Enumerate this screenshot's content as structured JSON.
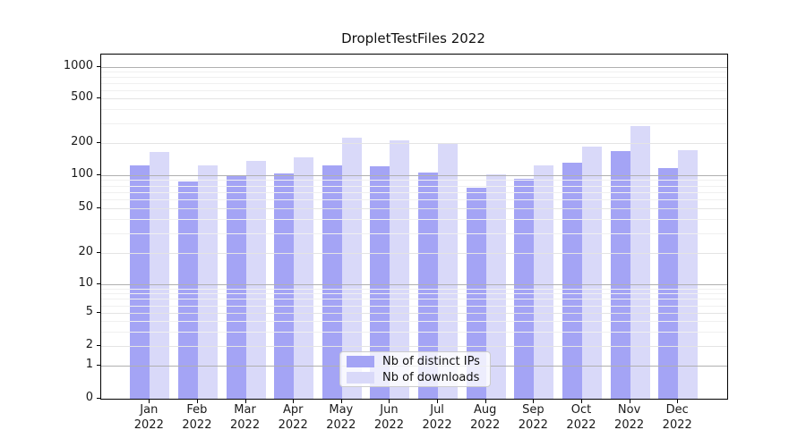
{
  "title": "DropletTestFiles 2022",
  "chart_data": {
    "type": "bar",
    "title": "DropletTestFiles 2022",
    "categories": [
      "Jan 2022",
      "Feb 2022",
      "Mar 2022",
      "Apr 2022",
      "May 2022",
      "Jun 2022",
      "Jul 2022",
      "Aug 2022",
      "Sep 2022",
      "Oct 2022",
      "Nov 2022",
      "Dec 2022"
    ],
    "series": [
      {
        "name": "Nb of distinct IPs",
        "color": "#a4a4f5",
        "values": [
          123,
          88,
          98,
          103,
          123,
          121,
          106,
          77,
          92,
          131,
          170,
          116
        ]
      },
      {
        "name": "Nb of downloads",
        "color": "#d9d9f9",
        "values": [
          165,
          123,
          135,
          147,
          225,
          211,
          196,
          102,
          123,
          186,
          285,
          171
        ]
      }
    ],
    "yscale": "symlog",
    "yticks": [
      0,
      1,
      2,
      5,
      10,
      20,
      50,
      100,
      200,
      500,
      1000
    ],
    "ylim": [
      0,
      1300
    ],
    "xlabel": "",
    "ylabel": "",
    "grid": true,
    "legend_position": "lower center"
  }
}
